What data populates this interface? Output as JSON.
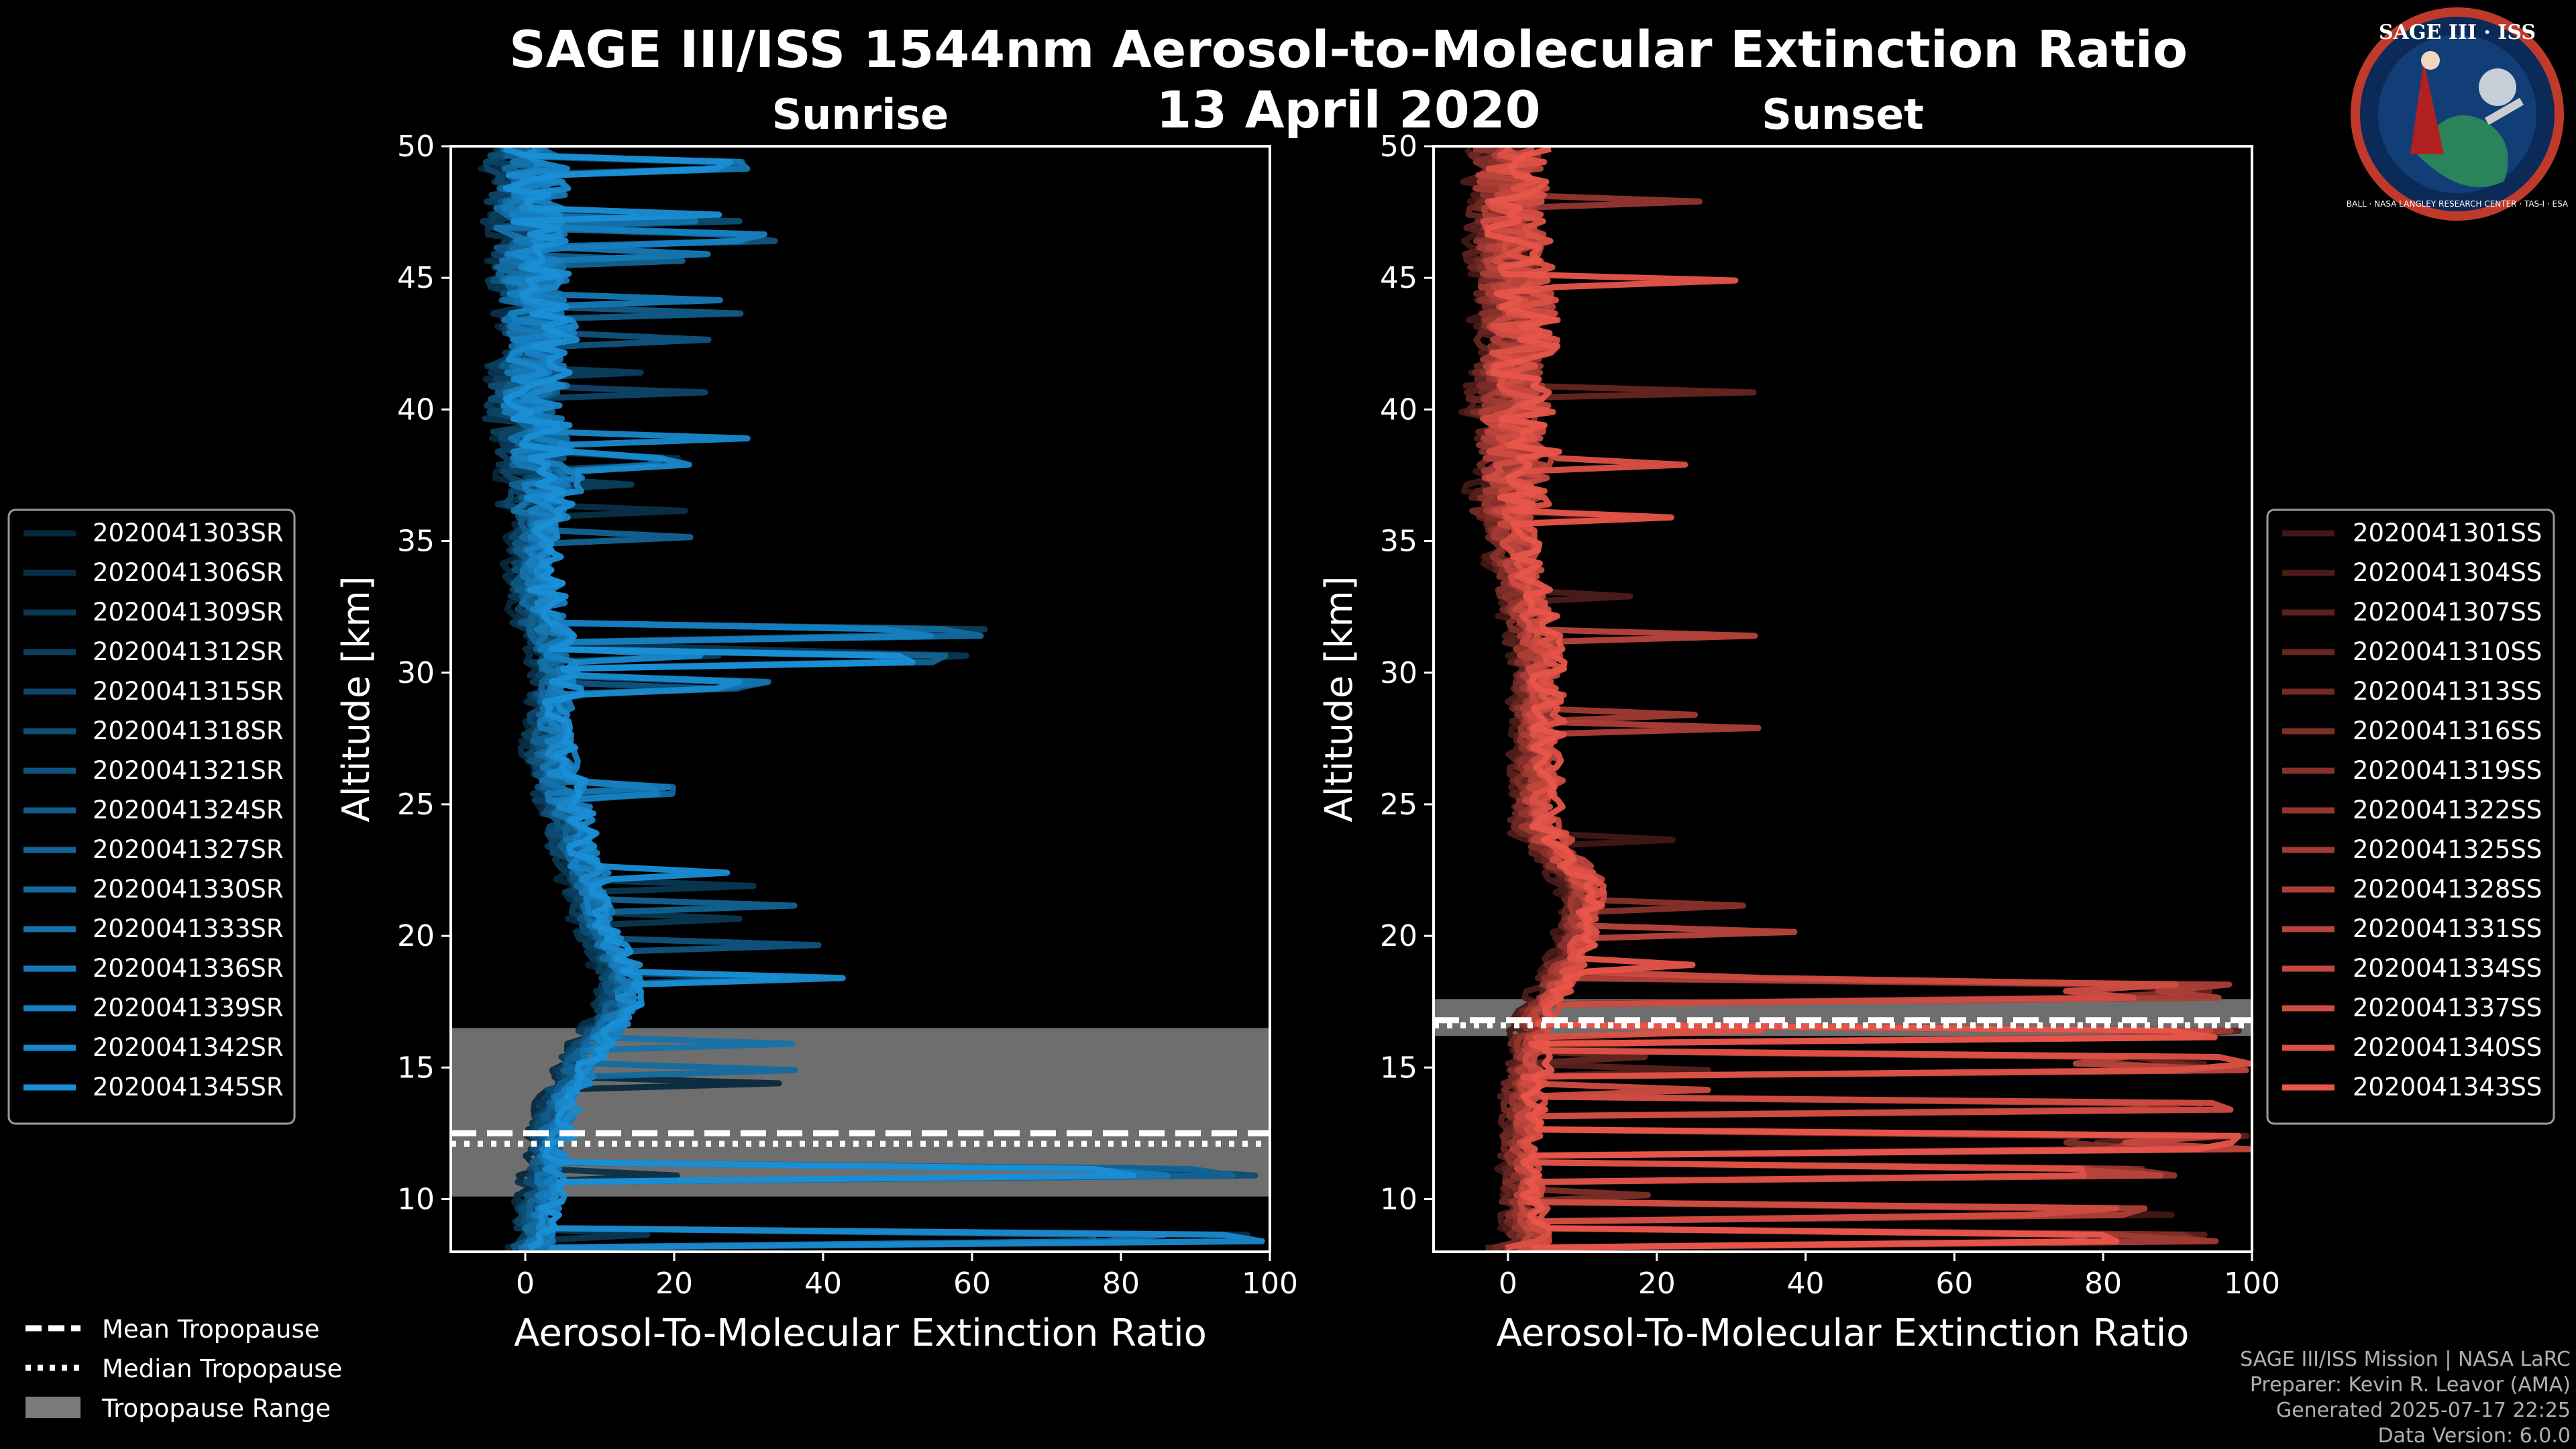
{
  "title": "SAGE III/ISS 1544nm Aerosol-to-Molecular Extinction Ratio",
  "date": "13 April 2020",
  "logo": {
    "text_top": "SAGE III · ISS",
    "text_ring": "BALL · NASA LANGLEY RESEARCH CENTER · TAS-I · ESA"
  },
  "footer": [
    "SAGE III/ISS Mission | NASA LaRC",
    "Preparer: Kevin R. Leavor (AMA)",
    "Generated 2025-07-17 22:25",
    "Data Version: 6.0.0"
  ],
  "common_legend": [
    {
      "label": "Mean Tropopause",
      "style": "dashed"
    },
    {
      "label": "Median Tropopause",
      "style": "dotted"
    },
    {
      "label": "Tropopause Range",
      "style": "patch"
    }
  ],
  "chart_data": [
    {
      "type": "line",
      "title": "Sunrise",
      "xlabel": "Aerosol-To-Molecular Extinction Ratio",
      "ylabel": "Altitude [km]",
      "xlim": [
        -10,
        100
      ],
      "ylim": [
        8,
        50
      ],
      "xticks": [
        0,
        20,
        40,
        60,
        80,
        100
      ],
      "yticks": [
        10,
        15,
        20,
        25,
        30,
        35,
        40,
        45,
        50
      ],
      "color": "#1a8fd6",
      "tropopause": {
        "mean": 12.5,
        "median": 12.1,
        "range": [
          10.1,
          16.5
        ]
      },
      "series_names": [
        "2020041303SR",
        "2020041306SR",
        "2020041309SR",
        "2020041312SR",
        "2020041315SR",
        "2020041318SR",
        "2020041321SR",
        "2020041324SR",
        "2020041327SR",
        "2020041330SR",
        "2020041333SR",
        "2020041336SR",
        "2020041339SR",
        "2020041342SR",
        "2020041345SR"
      ],
      "base_profile": {
        "altitude": [
          8.2,
          10,
          12,
          14,
          16,
          17,
          18,
          19,
          20,
          22,
          24,
          26,
          28,
          30,
          31,
          32,
          34,
          36,
          38,
          40,
          42,
          44,
          46,
          48,
          50
        ],
        "ratio": [
          1,
          2,
          3,
          5,
          9,
          12,
          13,
          12,
          10,
          8,
          6,
          4,
          3,
          4,
          3,
          2,
          1,
          2,
          2,
          0,
          1,
          1,
          0,
          0,
          0
        ]
      },
      "spikes": [
        {
          "altitude": 31.5,
          "ratio": 63
        },
        {
          "altitude": 30.5,
          "ratio": 60
        },
        {
          "altitude": 29.5,
          "ratio": 34
        },
        {
          "altitude": 46.5,
          "ratio": 34
        },
        {
          "altitude": 49.2,
          "ratio": 30
        },
        {
          "altitude": 38.0,
          "ratio": 22
        },
        {
          "altitude": 25.5,
          "ratio": 20
        },
        {
          "altitude": 11.0,
          "ratio": 100
        },
        {
          "altitude": 8.5,
          "ratio": 100
        }
      ]
    },
    {
      "type": "line",
      "title": "Sunset",
      "xlabel": "Aerosol-To-Molecular Extinction Ratio",
      "ylabel": "Altitude [km]",
      "xlim": [
        -10,
        100
      ],
      "ylim": [
        8,
        50
      ],
      "xticks": [
        0,
        20,
        40,
        60,
        80,
        100
      ],
      "yticks": [
        10,
        15,
        20,
        25,
        30,
        35,
        40,
        45,
        50
      ],
      "color": "#e8554a",
      "tropopause": {
        "mean": 16.8,
        "median": 16.6,
        "range": [
          16.2,
          17.6
        ]
      },
      "series_names": [
        "2020041301SS",
        "2020041304SS",
        "2020041307SS",
        "2020041310SS",
        "2020041313SS",
        "2020041316SS",
        "2020041319SS",
        "2020041322SS",
        "2020041325SS",
        "2020041328SS",
        "2020041331SS",
        "2020041334SS",
        "2020041337SS",
        "2020041340SS",
        "2020041343SS"
      ],
      "base_profile": {
        "altitude": [
          8.2,
          10,
          12,
          14,
          16,
          17,
          18,
          19,
          20,
          21,
          22,
          24,
          26,
          28,
          30,
          32,
          34,
          36,
          38,
          40,
          42,
          44,
          46,
          48,
          50
        ],
        "ratio": [
          3,
          2,
          2,
          2,
          3,
          4,
          6,
          8,
          9,
          10,
          10,
          4,
          4,
          4,
          4,
          3,
          1,
          0,
          1,
          0,
          1,
          1,
          0,
          0,
          0
        ]
      },
      "spikes": [
        {
          "altitude": 17.9,
          "ratio": 100
        },
        {
          "altitude": 16.3,
          "ratio": 100
        },
        {
          "altitude": 15.2,
          "ratio": 100
        },
        {
          "altitude": 13.5,
          "ratio": 100
        },
        {
          "altitude": 12.2,
          "ratio": 100
        },
        {
          "altitude": 11.0,
          "ratio": 100
        },
        {
          "altitude": 9.5,
          "ratio": 90
        },
        {
          "altitude": 8.6,
          "ratio": 100
        }
      ]
    }
  ]
}
